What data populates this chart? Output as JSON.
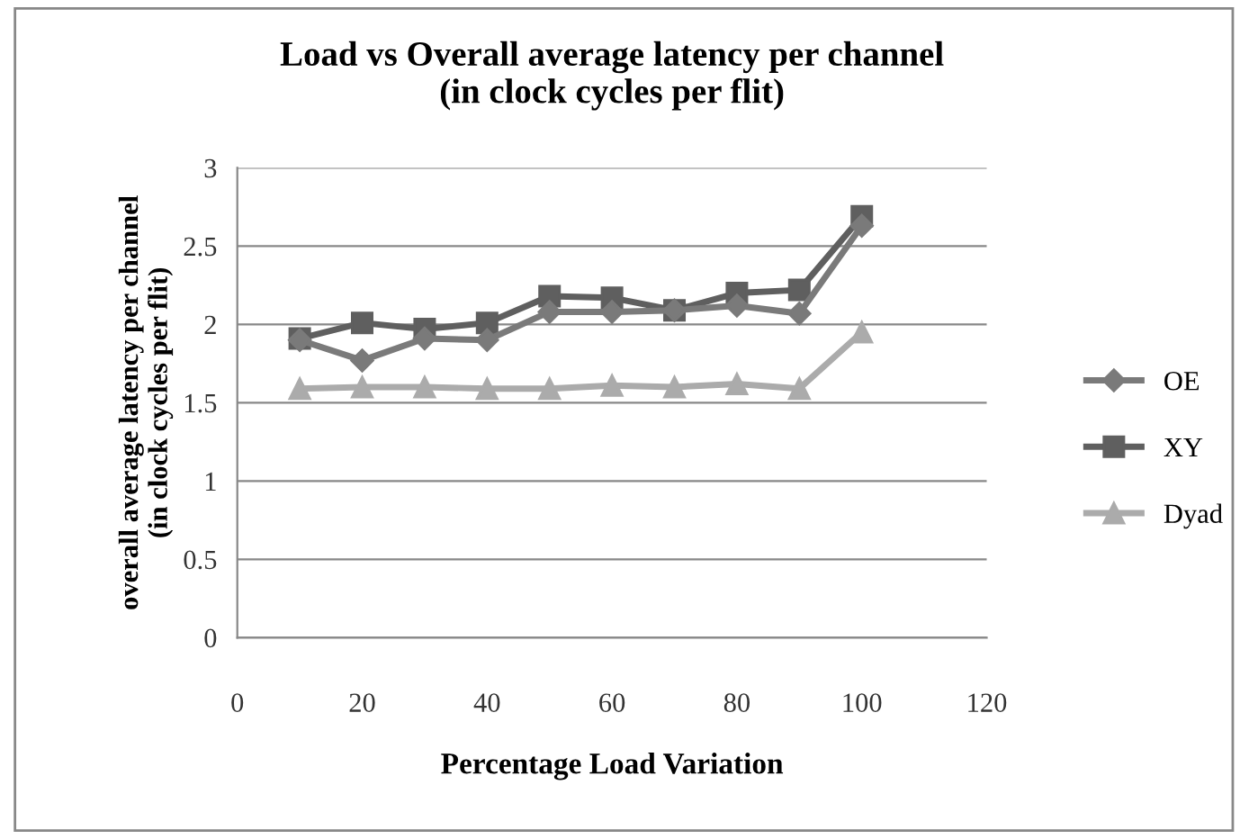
{
  "chart_data": {
    "type": "line",
    "title": "Load vs Overall average latency per channel\n(in clock cycles per flit)",
    "xlabel": "Percentage Load Variation",
    "ylabel": "overall average latency per channel\n(in clock cycles per flit)",
    "x": [
      10,
      20,
      30,
      40,
      50,
      60,
      70,
      80,
      90,
      100
    ],
    "series": [
      {
        "name": "OE",
        "color": "#7a7a7a",
        "marker": "diamond",
        "values": [
          1.9,
          1.77,
          1.91,
          1.9,
          2.08,
          2.08,
          2.09,
          2.12,
          2.07,
          2.63
        ]
      },
      {
        "name": "XY",
        "color": "#5f5f5f",
        "marker": "square",
        "values": [
          1.91,
          2.01,
          1.97,
          2.01,
          2.18,
          2.17,
          2.09,
          2.2,
          2.22,
          2.69
        ]
      },
      {
        "name": "Dyad",
        "color": "#ababab",
        "marker": "triangle",
        "values": [
          1.59,
          1.6,
          1.6,
          1.59,
          1.59,
          1.61,
          1.6,
          1.62,
          1.59,
          1.95
        ]
      }
    ],
    "xlim": [
      0,
      120
    ],
    "xticks": [
      0,
      20,
      40,
      60,
      80,
      100,
      120
    ],
    "ylim": [
      0,
      3
    ],
    "yticks": [
      0,
      0.5,
      1,
      1.5,
      2,
      2.5,
      3
    ],
    "grid": "y",
    "legend": "right"
  }
}
